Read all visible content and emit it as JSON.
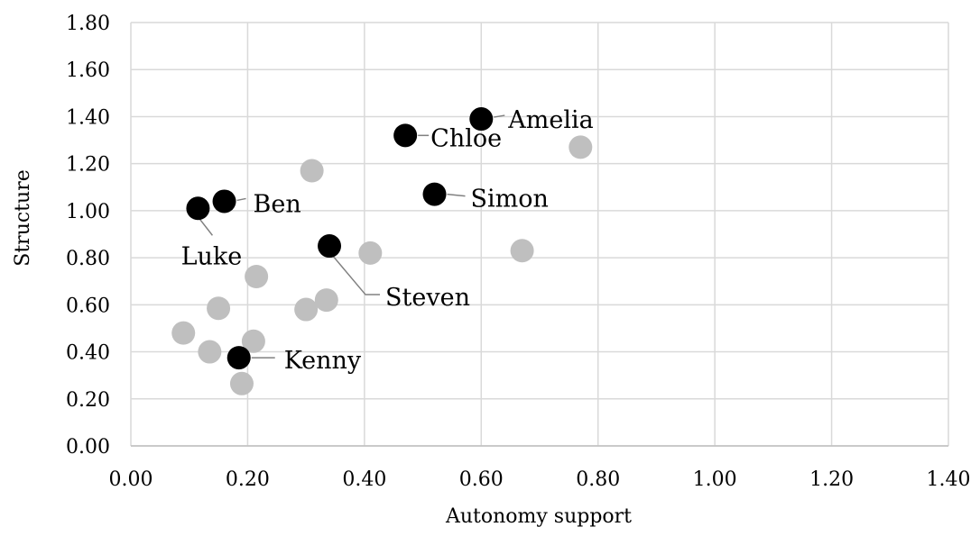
{
  "chart_data": {
    "type": "scatter",
    "title": "",
    "xlabel": "Autonomy support",
    "ylabel": "Structure",
    "xlim": [
      0,
      1.4
    ],
    "ylim": [
      0,
      1.8
    ],
    "x_ticks": [
      "0.00",
      "0.20",
      "0.40",
      "0.60",
      "0.80",
      "1.00",
      "1.20",
      "1.40"
    ],
    "y_ticks": [
      "0.00",
      "0.20",
      "0.40",
      "0.60",
      "0.80",
      "1.00",
      "1.20",
      "1.40",
      "1.60",
      "1.80"
    ],
    "grid": true,
    "colors": {
      "highlighted": "#000000",
      "other": "#bfbfbf",
      "grid": "#d9d9d9",
      "leader": "#808080"
    },
    "highlighted": [
      {
        "name": "Amelia",
        "x": 0.6,
        "y": 1.39
      },
      {
        "name": "Chloe",
        "x": 0.47,
        "y": 1.32
      },
      {
        "name": "Simon",
        "x": 0.52,
        "y": 1.07
      },
      {
        "name": "Ben",
        "x": 0.16,
        "y": 1.04
      },
      {
        "name": "Luke",
        "x": 0.115,
        "y": 1.01
      },
      {
        "name": "Steven",
        "x": 0.34,
        "y": 0.85
      },
      {
        "name": "Kenny",
        "x": 0.185,
        "y": 0.375
      }
    ],
    "other_points": [
      {
        "x": 0.77,
        "y": 1.27
      },
      {
        "x": 0.31,
        "y": 1.17
      },
      {
        "x": 0.67,
        "y": 0.83
      },
      {
        "x": 0.41,
        "y": 0.82
      },
      {
        "x": 0.215,
        "y": 0.72
      },
      {
        "x": 0.335,
        "y": 0.62
      },
      {
        "x": 0.3,
        "y": 0.58
      },
      {
        "x": 0.15,
        "y": 0.585
      },
      {
        "x": 0.09,
        "y": 0.48
      },
      {
        "x": 0.21,
        "y": 0.445
      },
      {
        "x": 0.135,
        "y": 0.4
      },
      {
        "x": 0.19,
        "y": 0.265
      }
    ]
  }
}
